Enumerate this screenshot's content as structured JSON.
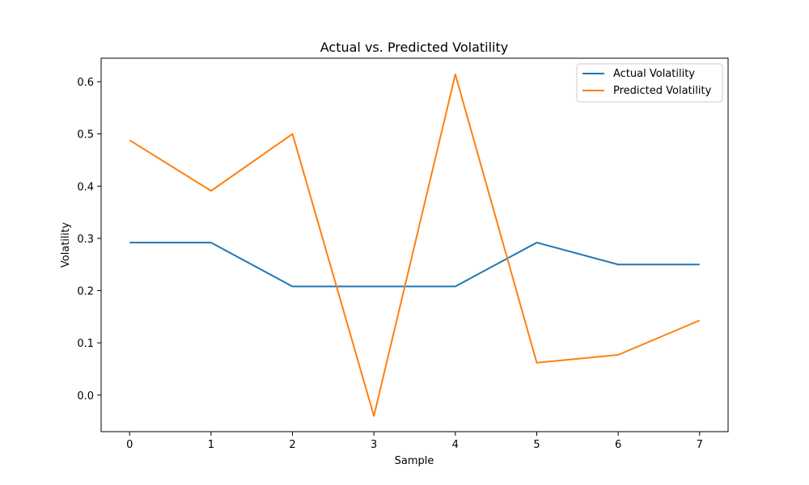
{
  "chart_data": {
    "type": "line",
    "title": "Actual vs. Predicted Volatility",
    "xlabel": "Sample",
    "ylabel": "Volatility",
    "x": [
      0,
      1,
      2,
      3,
      4,
      5,
      6,
      7
    ],
    "xlim": [
      -0.35,
      7.35
    ],
    "ylim": [
      -0.07,
      0.645
    ],
    "xticks": [
      0,
      1,
      2,
      3,
      4,
      5,
      6,
      7
    ],
    "yticks": [
      0.0,
      0.1,
      0.2,
      0.3,
      0.4,
      0.5,
      0.6
    ],
    "ytick_labels": [
      "0.0",
      "0.1",
      "0.2",
      "0.3",
      "0.4",
      "0.5",
      "0.6"
    ],
    "grid": false,
    "legend_position": "top-right",
    "series": [
      {
        "name": "Actual Volatility",
        "color": "#1f77b4",
        "values": [
          0.292,
          0.292,
          0.208,
          0.208,
          0.208,
          0.292,
          0.25,
          0.25
        ]
      },
      {
        "name": "Predicted Volatility",
        "color": "#ff7f0e",
        "values": [
          0.488,
          0.391,
          0.5,
          -0.04,
          0.614,
          0.062,
          0.077,
          0.143
        ]
      }
    ]
  }
}
